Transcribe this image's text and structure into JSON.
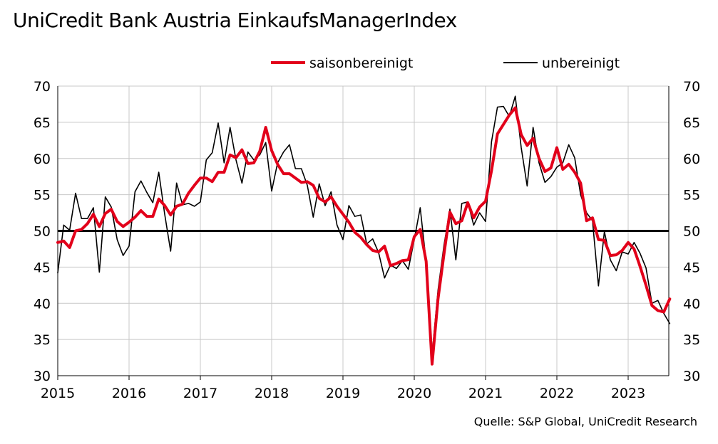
{
  "title": "UniCredit Bank Austria EinkaufsManagerIndex",
  "source": "Quelle: S&P Global, UniCredit Research",
  "legend": {
    "sa_label": "saisonbereinigt",
    "nsa_label": "unbereinigt"
  },
  "colors": {
    "sa": "#e2001a",
    "nsa": "#000000",
    "reference_line": "#000000",
    "grid": "#c8c8c8"
  },
  "chart_data": {
    "type": "line",
    "title": "UniCredit Bank Austria EinkaufsManagerIndex",
    "xlabel": "",
    "ylabel": "",
    "x_start": "2015-01",
    "x_end": "2023-08",
    "x_ticks": [
      "2015",
      "2016",
      "2017",
      "2018",
      "2019",
      "2020",
      "2021",
      "2022",
      "2023"
    ],
    "y_ticks": [
      30,
      35,
      40,
      45,
      50,
      55,
      60,
      65,
      70
    ],
    "ylim": [
      30,
      70
    ],
    "y_axis_left": true,
    "y_axis_right": true,
    "grid": true,
    "legend_position": "top",
    "reference_line": 50,
    "series": [
      {
        "name": "saisonbereinigt",
        "values": [
          48.4,
          48.6,
          47.7,
          50.0,
          50.2,
          51.0,
          52.3,
          50.6,
          52.4,
          53.0,
          51.3,
          50.6,
          51.2,
          51.9,
          52.8,
          52.0,
          52.0,
          54.4,
          53.5,
          52.2,
          53.4,
          53.7,
          55.2,
          56.3,
          57.3,
          57.3,
          56.8,
          58.1,
          58.1,
          60.5,
          60.1,
          61.2,
          59.3,
          59.4,
          61.0,
          64.3,
          61.1,
          59.2,
          57.9,
          57.9,
          57.3,
          56.7,
          56.8,
          56.3,
          54.5,
          54.0,
          54.7,
          53.4,
          52.3,
          51.2,
          49.8,
          49.1,
          48.1,
          47.3,
          47.1,
          47.9,
          45.2,
          45.5,
          45.9,
          46.0,
          49.2,
          50.2,
          45.8,
          31.6,
          40.6,
          46.8,
          52.6,
          51.0,
          51.4,
          53.9,
          51.8,
          53.3,
          54.1,
          58.3,
          63.4,
          64.7,
          66.0,
          67.0,
          63.3,
          61.8,
          62.8,
          60.0,
          58.2,
          58.7,
          61.5,
          58.5,
          59.2,
          58.1,
          56.6,
          51.4,
          51.8,
          48.8,
          48.7,
          46.6,
          46.7,
          47.3,
          48.4,
          47.5,
          45.1,
          42.5,
          39.7,
          39.0,
          38.8,
          40.6
        ]
      },
      {
        "name": "unbereinigt",
        "values": [
          44.2,
          50.8,
          50.1,
          55.2,
          51.7,
          51.7,
          53.2,
          44.3,
          54.7,
          53.3,
          48.8,
          46.6,
          47.9,
          55.4,
          56.9,
          55.3,
          53.9,
          58.1,
          52.3,
          47.2,
          56.6,
          53.6,
          53.8,
          53.4,
          54.0,
          59.8,
          60.8,
          64.9,
          59.4,
          64.3,
          59.8,
          56.6,
          60.9,
          59.8,
          60.5,
          62.2,
          55.5,
          59.4,
          60.9,
          61.9,
          58.6,
          58.6,
          56.3,
          51.9,
          56.5,
          53.5,
          55.4,
          50.8,
          48.8,
          53.5,
          52.0,
          52.2,
          48.2,
          48.9,
          47.0,
          43.5,
          45.3,
          44.8,
          45.9,
          44.7,
          48.8,
          53.2,
          45.7,
          32.9,
          41.8,
          48.0,
          53.0,
          46.0,
          53.8,
          54.0,
          50.8,
          52.5,
          51.3,
          62.3,
          67.1,
          67.2,
          65.8,
          68.6,
          61.5,
          56.2,
          64.3,
          59.4,
          56.7,
          57.5,
          58.8,
          59.4,
          61.9,
          60.1,
          55.0,
          52.5,
          51.4,
          42.4,
          49.9,
          46.0,
          44.5,
          47.1,
          46.8,
          48.4,
          46.9,
          44.9,
          40.0,
          40.4,
          38.6,
          37.2
        ]
      }
    ]
  }
}
